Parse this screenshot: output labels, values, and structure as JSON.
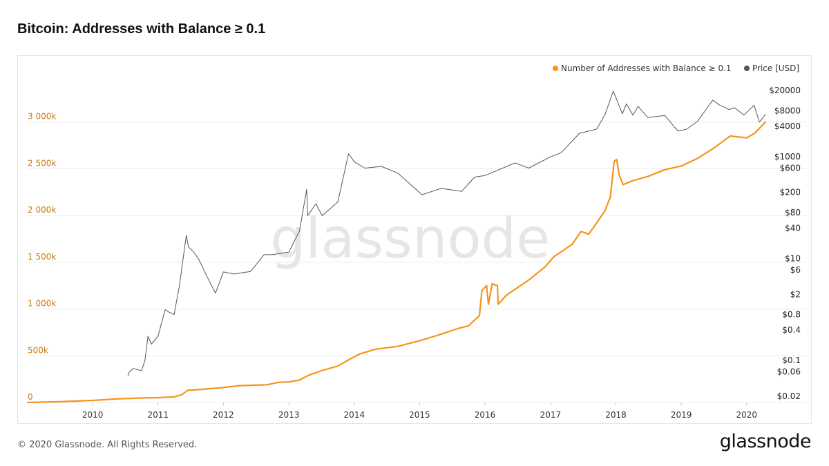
{
  "title": "Bitcoin: Addresses with Balance ≥ 0.1",
  "footer": {
    "copyright": "© 2020 Glassnode. All Rights Reserved.",
    "logo_text": "glassnode"
  },
  "watermark": "glassnode",
  "colors": {
    "addresses": "#f7931a",
    "price": "#555555",
    "left_axis_text": "#c57a14",
    "grid": "#ececec",
    "watermark": "#e6e6e6"
  },
  "chart_data": {
    "type": "line",
    "title": "Bitcoin: Addresses with Balance ≥ 0.1",
    "legend_position": "top-right",
    "grid": true,
    "x_axis": {
      "type": "date",
      "range": [
        "2009-01-03",
        "2020-04-15"
      ],
      "tick_labels": [
        "2010",
        "2011",
        "2012",
        "2013",
        "2014",
        "2015",
        "2016",
        "2017",
        "2018",
        "2019",
        "2020"
      ]
    },
    "y_left": {
      "range": [
        0,
        3500000
      ],
      "ticks": [
        0,
        500000,
        1000000,
        1500000,
        2000000,
        2500000,
        3000000
      ],
      "tick_labels": [
        "0",
        "500k",
        "1 000k",
        "1 500k",
        "2 000k",
        "2 500k",
        "3 000k"
      ]
    },
    "y_right": {
      "scale": "log",
      "range": [
        0.015,
        40000
      ],
      "ticks": [
        0.02,
        0.06,
        0.1,
        0.4,
        0.8,
        2,
        6,
        10,
        40,
        80,
        200,
        600,
        1000,
        4000,
        8000,
        20000
      ],
      "tick_labels": [
        "$0.02",
        "$0.06",
        "$0.1",
        "$0.4",
        "$0.8",
        "$2",
        "$6",
        "$10",
        "$40",
        "$80",
        "$200",
        "$600",
        "$1000",
        "$4000",
        "$8000",
        "$20000"
      ]
    },
    "series": [
      {
        "name": "Number of Addresses with Balance ≥ 0.1",
        "axis": "left",
        "color": "#f7931a",
        "points": [
          [
            "2009-01-03",
            0
          ],
          [
            "2009-07-01",
            8000
          ],
          [
            "2010-01-01",
            22000
          ],
          [
            "2010-06-01",
            40000
          ],
          [
            "2010-10-01",
            48000
          ],
          [
            "2011-01-01",
            52000
          ],
          [
            "2011-04-01",
            60000
          ],
          [
            "2011-05-15",
            85000
          ],
          [
            "2011-06-15",
            130000
          ],
          [
            "2011-09-01",
            140000
          ],
          [
            "2012-01-01",
            160000
          ],
          [
            "2012-04-01",
            180000
          ],
          [
            "2012-07-01",
            185000
          ],
          [
            "2012-09-01",
            190000
          ],
          [
            "2012-11-01",
            215000
          ],
          [
            "2013-01-01",
            220000
          ],
          [
            "2013-03-01",
            240000
          ],
          [
            "2013-04-20",
            290000
          ],
          [
            "2013-07-01",
            340000
          ],
          [
            "2013-10-01",
            390000
          ],
          [
            "2013-11-25",
            450000
          ],
          [
            "2014-02-01",
            520000
          ],
          [
            "2014-05-01",
            570000
          ],
          [
            "2014-09-01",
            600000
          ],
          [
            "2015-01-01",
            660000
          ],
          [
            "2015-05-01",
            730000
          ],
          [
            "2015-08-01",
            790000
          ],
          [
            "2015-10-01",
            820000
          ],
          [
            "2015-12-01",
            930000
          ],
          [
            "2015-12-15",
            1200000
          ],
          [
            "2016-01-10",
            1250000
          ],
          [
            "2016-01-20",
            1050000
          ],
          [
            "2016-02-10",
            1270000
          ],
          [
            "2016-03-10",
            1250000
          ],
          [
            "2016-03-15",
            1050000
          ],
          [
            "2016-05-01",
            1150000
          ],
          [
            "2016-09-01",
            1310000
          ],
          [
            "2016-12-01",
            1450000
          ],
          [
            "2017-01-20",
            1560000
          ],
          [
            "2017-05-01",
            1690000
          ],
          [
            "2017-06-20",
            1830000
          ],
          [
            "2017-08-01",
            1800000
          ],
          [
            "2017-09-01",
            1880000
          ],
          [
            "2017-11-01",
            2050000
          ],
          [
            "2017-12-01",
            2200000
          ],
          [
            "2017-12-22",
            2580000
          ],
          [
            "2018-01-05",
            2600000
          ],
          [
            "2018-01-20",
            2430000
          ],
          [
            "2018-02-10",
            2330000
          ],
          [
            "2018-04-01",
            2370000
          ],
          [
            "2018-07-01",
            2420000
          ],
          [
            "2018-10-01",
            2490000
          ],
          [
            "2019-01-01",
            2530000
          ],
          [
            "2019-04-01",
            2610000
          ],
          [
            "2019-07-01",
            2720000
          ],
          [
            "2019-10-01",
            2850000
          ],
          [
            "2020-01-01",
            2830000
          ],
          [
            "2020-02-15",
            2880000
          ],
          [
            "2020-04-15",
            3000000
          ]
        ]
      },
      {
        "name": "Price [USD]",
        "axis": "right",
        "color": "#555555",
        "points": [
          [
            "2010-07-17",
            0.05
          ],
          [
            "2010-07-25",
            0.06
          ],
          [
            "2010-08-15",
            0.07
          ],
          [
            "2010-10-01",
            0.063
          ],
          [
            "2010-10-20",
            0.1
          ],
          [
            "2010-11-06",
            0.3
          ],
          [
            "2010-11-25",
            0.21
          ],
          [
            "2011-01-01",
            0.3
          ],
          [
            "2011-02-10",
            1.0
          ],
          [
            "2011-03-01",
            0.9
          ],
          [
            "2011-04-01",
            0.8
          ],
          [
            "2011-05-01",
            3.0
          ],
          [
            "2011-06-08",
            29.0
          ],
          [
            "2011-06-20",
            17.0
          ],
          [
            "2011-07-15",
            14.0
          ],
          [
            "2011-08-15",
            10.0
          ],
          [
            "2011-10-01",
            4.5
          ],
          [
            "2011-11-18",
            2.1
          ],
          [
            "2012-01-01",
            5.5
          ],
          [
            "2012-03-01",
            5.0
          ],
          [
            "2012-06-01",
            5.6
          ],
          [
            "2012-08-15",
            12.0
          ],
          [
            "2012-10-01",
            12.0
          ],
          [
            "2013-01-01",
            13.5
          ],
          [
            "2013-03-01",
            35.0
          ],
          [
            "2013-04-10",
            230.0
          ],
          [
            "2013-04-16",
            70.0
          ],
          [
            "2013-06-01",
            120.0
          ],
          [
            "2013-07-06",
            70.0
          ],
          [
            "2013-10-01",
            130.0
          ],
          [
            "2013-11-30",
            1150.0
          ],
          [
            "2014-01-01",
            800.0
          ],
          [
            "2014-03-01",
            600.0
          ],
          [
            "2014-06-01",
            650.0
          ],
          [
            "2014-09-01",
            480.0
          ],
          [
            "2015-01-14",
            180.0
          ],
          [
            "2015-05-01",
            240.0
          ],
          [
            "2015-08-24",
            210.0
          ],
          [
            "2015-11-04",
            400.0
          ],
          [
            "2016-01-01",
            430.0
          ],
          [
            "2016-06-17",
            760.0
          ],
          [
            "2016-09-01",
            600.0
          ],
          [
            "2017-01-01",
            1000.0
          ],
          [
            "2017-03-01",
            1200.0
          ],
          [
            "2017-06-11",
            2900.0
          ],
          [
            "2017-09-15",
            3500.0
          ],
          [
            "2017-11-01",
            6700.0
          ],
          [
            "2017-12-17",
            19500.0
          ],
          [
            "2018-02-06",
            7000.0
          ],
          [
            "2018-03-01",
            11000.0
          ],
          [
            "2018-04-06",
            6600.0
          ],
          [
            "2018-05-05",
            9800.0
          ],
          [
            "2018-06-29",
            5900.0
          ],
          [
            "2018-10-01",
            6500.0
          ],
          [
            "2018-11-25",
            3800.0
          ],
          [
            "2018-12-15",
            3200.0
          ],
          [
            "2019-02-01",
            3500.0
          ],
          [
            "2019-04-02",
            5000.0
          ],
          [
            "2019-06-26",
            13000.0
          ],
          [
            "2019-08-01",
            10500.0
          ],
          [
            "2019-09-24",
            8500.0
          ],
          [
            "2019-10-26",
            9200.0
          ],
          [
            "2019-12-17",
            6600.0
          ],
          [
            "2020-02-12",
            10300.0
          ],
          [
            "2020-03-12",
            4800.0
          ],
          [
            "2020-04-15",
            6800.0
          ]
        ]
      }
    ]
  }
}
